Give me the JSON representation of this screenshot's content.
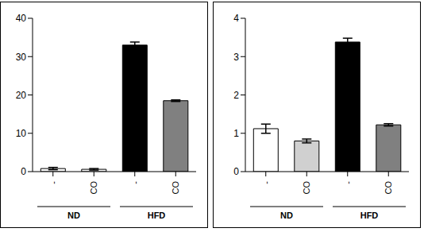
{
  "chart_data": [
    {
      "type": "bar",
      "categories": [
        "-",
        "CO",
        "-",
        "CO"
      ],
      "groups": [
        "ND",
        "ND",
        "HFD",
        "HFD"
      ],
      "values": [
        0.8,
        0.6,
        33,
        18.5
      ],
      "errors": [
        0.3,
        0.2,
        0.8,
        0.2
      ],
      "colors": [
        "#ffffff",
        "#ffffff",
        "#000000",
        "#808080"
      ],
      "ylim": [
        0,
        40
      ],
      "yticks": [
        0,
        10,
        20,
        30,
        40
      ]
    },
    {
      "type": "bar",
      "categories": [
        "-",
        "CO",
        "-",
        "CO"
      ],
      "groups": [
        "ND",
        "ND",
        "HFD",
        "HFD"
      ],
      "values": [
        1.12,
        0.8,
        3.38,
        1.22
      ],
      "errors": [
        0.12,
        0.05,
        0.1,
        0.03
      ],
      "colors": [
        "#ffffff",
        "#d0d0d0",
        "#000000",
        "#808080"
      ],
      "ylim": [
        0,
        4
      ],
      "yticks": [
        0,
        1,
        2,
        3,
        4
      ]
    }
  ]
}
